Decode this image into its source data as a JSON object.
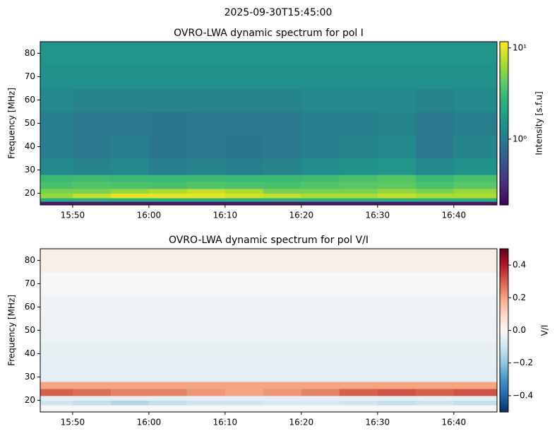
{
  "title": "2025-09-30T15:45:00",
  "chart_data": [
    {
      "type": "heatmap",
      "title": "OVRO-LWA dynamic spectrum for pol I",
      "ylabel": "Frequency [MHz]",
      "ylim": [
        15,
        85
      ],
      "yticks": [
        20,
        30,
        40,
        50,
        60,
        70,
        80
      ],
      "xlim": [
        "15:45:45",
        "16:45:40"
      ],
      "xticks": [
        "15:50",
        "16:00",
        "16:10",
        "16:20",
        "16:30",
        "16:40"
      ],
      "time_edges": [
        "15:45:45",
        "15:50",
        "15:55",
        "16:00",
        "16:05",
        "16:10",
        "16:15",
        "16:20",
        "16:25",
        "16:30",
        "16:35",
        "16:40",
        "16:45:40"
      ],
      "freq_edges": [
        15,
        16.5,
        18,
        20,
        22,
        25,
        28,
        35,
        45,
        55,
        65,
        75,
        85
      ],
      "z": [
        [
          0.25,
          0.25,
          0.25,
          0.25,
          0.25,
          0.25,
          0.25,
          0.25,
          0.25,
          0.25,
          0.25,
          0.25
        ],
        [
          2.5,
          2.5,
          2.5,
          2.5,
          2.5,
          2.5,
          2.5,
          2.5,
          2.5,
          2.5,
          2.5,
          2.5
        ],
        [
          6,
          8,
          10,
          10,
          10,
          9,
          8,
          7,
          7,
          8,
          7,
          7
        ],
        [
          5,
          5,
          6,
          7,
          8,
          7,
          5,
          5,
          5,
          6,
          5,
          6
        ],
        [
          3.5,
          3.8,
          3.6,
          3.5,
          3.7,
          3.6,
          3.5,
          3.8,
          4,
          4.2,
          3.6,
          4
        ],
        [
          3,
          3.2,
          3,
          3,
          3.1,
          3,
          3,
          3.2,
          3.5,
          3.8,
          3,
          3.5
        ],
        [
          1.3,
          1.2,
          1.3,
          1.1,
          1.2,
          1.1,
          1.2,
          1.4,
          1.5,
          1.6,
          1.3,
          1.5
        ],
        [
          1.1,
          1.0,
          1.1,
          0.95,
          1.0,
          0.95,
          1.0,
          1.1,
          1.2,
          1.3,
          1.0,
          1.2
        ],
        [
          1.1,
          1.0,
          1.0,
          0.95,
          1.0,
          1.0,
          1.0,
          1.1,
          1.1,
          1.2,
          1.0,
          1.1
        ],
        [
          1.3,
          1.2,
          1.2,
          1.2,
          1.2,
          1.2,
          1.2,
          1.3,
          1.3,
          1.3,
          1.2,
          1.3
        ],
        [
          1.5,
          1.5,
          1.5,
          1.5,
          1.5,
          1.5,
          1.5,
          1.5,
          1.5,
          1.5,
          1.5,
          1.5
        ],
        [
          1.6,
          1.6,
          1.6,
          1.6,
          1.6,
          1.6,
          1.6,
          1.6,
          1.6,
          1.6,
          1.6,
          1.6
        ]
      ],
      "colormap": "viridis",
      "color_scale": "log",
      "clim": [
        0.19,
        11.7
      ],
      "cticks": [
        {
          "value": 1,
          "label": "10⁰"
        },
        {
          "value": 10,
          "label": "10¹"
        }
      ],
      "clabel": "Intensity [s.f.u]"
    },
    {
      "type": "heatmap",
      "title": "OVRO-LWA dynamic spectrum for pol V/I",
      "ylabel": "Frequency [MHz]",
      "ylim": [
        15,
        85
      ],
      "yticks": [
        20,
        30,
        40,
        50,
        60,
        70,
        80
      ],
      "xlim": [
        "15:45:45",
        "16:45:40"
      ],
      "xticks": [
        "15:50",
        "16:00",
        "16:10",
        "16:20",
        "16:30",
        "16:40"
      ],
      "time_edges": [
        "15:45:45",
        "15:50",
        "15:55",
        "16:00",
        "16:05",
        "16:10",
        "16:15",
        "16:20",
        "16:25",
        "16:30",
        "16:35",
        "16:40",
        "16:45:40"
      ],
      "freq_edges": [
        15,
        16.5,
        18,
        20,
        22,
        25,
        28,
        35,
        45,
        55,
        65,
        75,
        85
      ],
      "z": [
        [
          0.02,
          0.02,
          0.02,
          0.02,
          0.02,
          0.02,
          0.02,
          0.02,
          0.02,
          0.02,
          0.02,
          0.02
        ],
        [
          0,
          0,
          0,
          0,
          0,
          0,
          0,
          0,
          0,
          0,
          0,
          0
        ],
        [
          -0.1,
          -0.12,
          -0.15,
          -0.12,
          -0.1,
          -0.1,
          -0.08,
          -0.08,
          -0.1,
          -0.12,
          -0.1,
          -0.12
        ],
        [
          -0.05,
          -0.05,
          -0.05,
          -0.05,
          -0.05,
          -0.05,
          -0.05,
          -0.05,
          -0.05,
          -0.05,
          -0.05,
          -0.05
        ],
        [
          0.3,
          0.28,
          0.25,
          0.25,
          0.22,
          0.2,
          0.22,
          0.25,
          0.3,
          0.32,
          0.3,
          0.32
        ],
        [
          0.2,
          0.2,
          0.2,
          0.2,
          0.2,
          0.2,
          0.2,
          0.2,
          0.2,
          0.2,
          0.2,
          0.2
        ],
        [
          -0.05,
          -0.05,
          -0.05,
          -0.05,
          -0.05,
          -0.05,
          -0.05,
          -0.05,
          -0.05,
          -0.05,
          -0.05,
          -0.05
        ],
        [
          -0.04,
          -0.04,
          -0.04,
          -0.04,
          -0.04,
          -0.04,
          -0.04,
          -0.04,
          -0.04,
          -0.04,
          -0.04,
          -0.04
        ],
        [
          -0.03,
          -0.03,
          -0.03,
          -0.03,
          -0.03,
          -0.03,
          -0.03,
          -0.03,
          -0.03,
          -0.03,
          -0.03,
          -0.03
        ],
        [
          -0.02,
          -0.02,
          -0.02,
          -0.02,
          -0.02,
          -0.02,
          -0.02,
          -0.02,
          -0.02,
          -0.02,
          -0.02,
          -0.02
        ],
        [
          0,
          0,
          0,
          0,
          0,
          0,
          0,
          0,
          0,
          0,
          0,
          0
        ],
        [
          0.03,
          0.03,
          0.03,
          0.03,
          0.03,
          0.03,
          0.03,
          0.03,
          0.03,
          0.03,
          0.03,
          0.03
        ]
      ],
      "colormap": "RdBu_r",
      "color_scale": "linear",
      "clim": [
        -0.5,
        0.5
      ],
      "cticks": [
        {
          "value": -0.4,
          "label": "−0.4"
        },
        {
          "value": -0.2,
          "label": "−0.2"
        },
        {
          "value": 0,
          "label": "0.0"
        },
        0.2,
        0.4
      ],
      "clabel": "V/I"
    }
  ]
}
